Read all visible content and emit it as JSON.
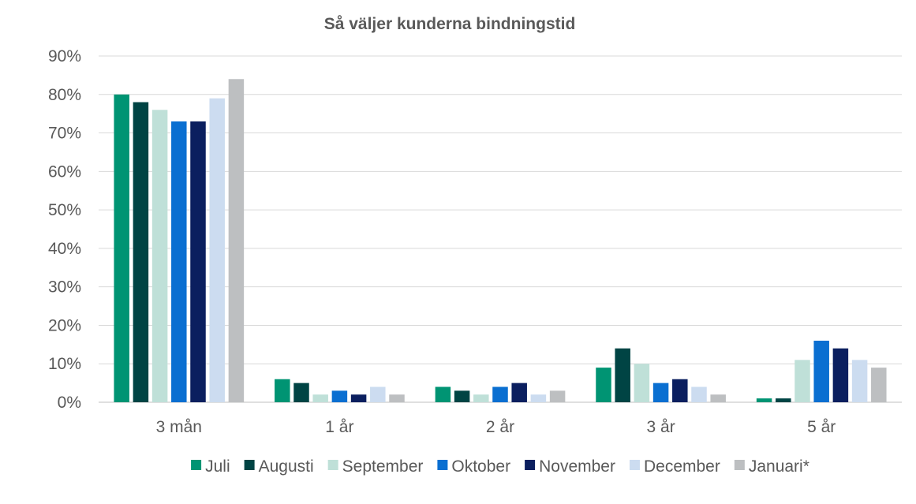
{
  "chart_data": {
    "type": "bar",
    "title": "Så väljer kunderna bindningstid",
    "categories": [
      "3 mån",
      "1 år",
      "2 år",
      "3 år",
      "5 år"
    ],
    "y_ticks": [
      "0%",
      "10%",
      "20%",
      "30%",
      "40%",
      "50%",
      "60%",
      "70%",
      "80%",
      "90%"
    ],
    "ylim": [
      0,
      90
    ],
    "y_unit": "%",
    "grid": true,
    "legend_position": "bottom",
    "series": [
      {
        "name": "Juli",
        "color": "#009473",
        "values": [
          80,
          6,
          4,
          9,
          1
        ]
      },
      {
        "name": "Augusti",
        "color": "#004444",
        "values": [
          78,
          5,
          3,
          14,
          1
        ]
      },
      {
        "name": "September",
        "color": "#bfe0d8",
        "values": [
          76,
          2,
          2,
          10,
          11
        ]
      },
      {
        "name": "Oktober",
        "color": "#0a6fd1",
        "values": [
          73,
          3,
          4,
          5,
          16
        ]
      },
      {
        "name": "November",
        "color": "#0b1f5f",
        "values": [
          73,
          2,
          5,
          6,
          14
        ]
      },
      {
        "name": "December",
        "color": "#ccdcf0",
        "values": [
          79,
          4,
          2,
          4,
          11
        ]
      },
      {
        "name": "Januari*",
        "color": "#bdbfc1",
        "values": [
          84,
          2,
          3,
          2,
          9
        ]
      }
    ]
  }
}
